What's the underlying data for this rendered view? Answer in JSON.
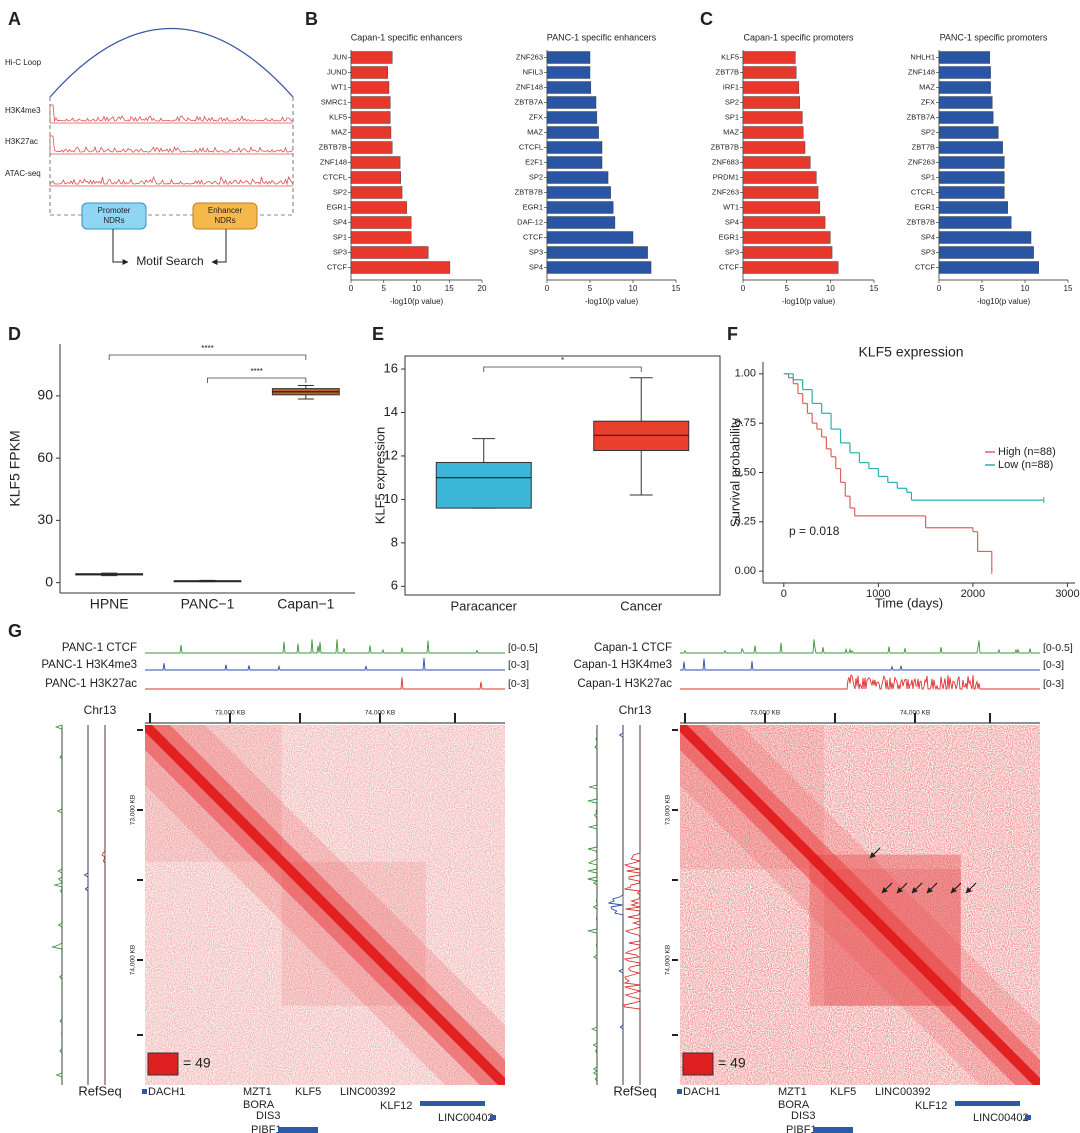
{
  "panel_labels": [
    "A",
    "B",
    "C",
    "D",
    "E",
    "F",
    "G"
  ],
  "panel_a": {
    "tracks": [
      "Hi-C Loop",
      "H3K4me3",
      "H3K27ac",
      "ATAC-seq"
    ],
    "boxes": [
      {
        "line1": "Promoter",
        "line2": "NDRs"
      },
      {
        "line1": "Enhancer",
        "line2": "NDRs"
      }
    ],
    "center": "Motif Search"
  },
  "chart_data": [
    {
      "type": "bar",
      "orientation": "horizontal",
      "title": "Capan-1 specific enhancers",
      "categories": [
        "JUN",
        "JUND",
        "WT1",
        "SMRC1",
        "KLF5",
        "MAZ",
        "ZBTB7B",
        "ZNF148",
        "CTCFL",
        "SP2",
        "EGR1",
        "SP4",
        "SP1",
        "SP3",
        "CTCF"
      ],
      "values": [
        6.3,
        5.6,
        5.8,
        6.0,
        6.0,
        6.1,
        6.3,
        7.5,
        7.6,
        7.8,
        8.5,
        9.2,
        9.2,
        11.8,
        15.1
      ],
      "color": "#e8382b",
      "xlim": [
        0,
        20
      ],
      "xticks": [
        0,
        5,
        10,
        15,
        20
      ],
      "xlabel": "-log10(p value)"
    },
    {
      "type": "bar",
      "orientation": "horizontal",
      "title": "PANC-1 specific enhancers",
      "categories": [
        "ZNF263",
        "NFIL3",
        "ZNF148",
        "ZBTB7A",
        "ZFX",
        "MAZ",
        "CTCFL",
        "E2F1",
        "SP2",
        "ZBTB7B",
        "EGR1",
        "DAF-12",
        "CTCF",
        "SP3",
        "SP4"
      ],
      "values": [
        5.0,
        5.0,
        5.1,
        5.7,
        5.8,
        6.0,
        6.4,
        6.4,
        7.1,
        7.4,
        7.7,
        7.9,
        10.0,
        11.7,
        12.1
      ],
      "color": "#2a55a5",
      "xlim": [
        0,
        15
      ],
      "xticks": [
        0,
        5,
        10,
        15
      ],
      "xlabel": "-log10(p value)"
    },
    {
      "type": "bar",
      "orientation": "horizontal",
      "title": "Capan-1 specific promoters",
      "categories": [
        "KLF5",
        "ZBT7B",
        "IRF1",
        "SP2",
        "SP1",
        "MAZ",
        "ZBTB7B",
        "ZNF683",
        "PRDM1",
        "ZNF263",
        "WT1",
        "SP4",
        "EGR1",
        "SP3",
        "CTCF"
      ],
      "values": [
        6.0,
        6.1,
        6.4,
        6.5,
        6.8,
        6.9,
        7.1,
        7.7,
        8.4,
        8.6,
        8.8,
        9.4,
        10.0,
        10.2,
        10.9
      ],
      "color": "#e8382b",
      "xlim": [
        0,
        15
      ],
      "xticks": [
        0,
        5,
        10,
        15
      ],
      "xlabel": "-log10(p value)"
    },
    {
      "type": "bar",
      "orientation": "horizontal",
      "title": "PANC-1 specific promoters",
      "categories": [
        "NHLH1",
        "ZNF148",
        "MAZ",
        "ZFX",
        "ZBTB7A",
        "SP2",
        "ZBT7B",
        "ZNF263",
        "SP1",
        "CTCFL",
        "EGR1",
        "ZBTB7B",
        "SP4",
        "SP3",
        "CTCF"
      ],
      "values": [
        5.9,
        6.0,
        6.0,
        6.2,
        6.3,
        6.9,
        7.4,
        7.6,
        7.6,
        7.6,
        8.0,
        8.4,
        10.7,
        11.0,
        11.6
      ],
      "color": "#2a55a5",
      "xlim": [
        0,
        15
      ],
      "xticks": [
        0,
        5,
        10,
        15
      ],
      "xlabel": "-log10(p value)"
    },
    {
      "type": "box",
      "ylabel": "KLF5 FPKM",
      "categories": [
        "HPNE",
        "PANC−1",
        "Capan−1"
      ],
      "boxes": [
        {
          "whislo": 3.4,
          "q1": 3.7,
          "median": 4.0,
          "q3": 4.3,
          "whishi": 4.6
        },
        {
          "whislo": 0.5,
          "q1": 0.7,
          "median": 0.8,
          "q3": 0.9,
          "whishi": 1.1
        },
        {
          "whislo": 88.5,
          "q1": 90.5,
          "median": 92.0,
          "q3": 93.5,
          "whishi": 95.0
        }
      ],
      "colors": [
        "#9a9a9a",
        "#444444",
        "#c0602a"
      ],
      "ylim": [
        -5,
        115
      ],
      "yticks": [
        0,
        30,
        60,
        90
      ],
      "comparisons": [
        {
          "pair": [
            0,
            2
          ],
          "label": "****"
        },
        {
          "pair": [
            1,
            2
          ],
          "label": "****"
        }
      ]
    },
    {
      "type": "box",
      "frame": true,
      "ylabel": "KLF5 expression",
      "categories": [
        "Paracancer",
        "Cancer"
      ],
      "boxes": [
        {
          "whislo": 9.6,
          "q1": 9.6,
          "median": 11.0,
          "q3": 11.7,
          "whishi": 12.8
        },
        {
          "whislo": 10.2,
          "q1": 12.25,
          "median": 12.95,
          "q3": 13.6,
          "whishi": 15.6
        }
      ],
      "colors": [
        "#3bb6d6",
        "#e8402c"
      ],
      "ylim": [
        5.6,
        16.6
      ],
      "yticks": [
        6,
        8,
        10,
        12,
        14,
        16
      ],
      "comparisons": [
        {
          "pair": [
            0,
            1
          ],
          "label": "*"
        }
      ]
    },
    {
      "type": "line",
      "step": true,
      "title": "KLF5 expression",
      "xlabel": "Time (days)",
      "ylabel": "Survival probability",
      "series": [
        {
          "name": "High (n=88)",
          "color": "#e06060",
          "x": [
            0,
            50,
            100,
            150,
            200,
            250,
            300,
            350,
            400,
            450,
            500,
            550,
            600,
            650,
            700,
            750,
            1400,
            1500,
            2000,
            2050,
            2200
          ],
          "values": [
            1.0,
            0.98,
            0.95,
            0.9,
            0.85,
            0.8,
            0.75,
            0.72,
            0.68,
            0.62,
            0.58,
            0.52,
            0.45,
            0.38,
            0.32,
            0.28,
            0.28,
            0.22,
            0.2,
            0.1,
            0.0
          ]
        },
        {
          "name": "Low (n=88)",
          "color": "#2ab0b0",
          "x": [
            0,
            100,
            200,
            300,
            400,
            500,
            600,
            700,
            800,
            900,
            1000,
            1100,
            1200,
            1300,
            1350,
            2750
          ],
          "values": [
            1.0,
            0.97,
            0.92,
            0.85,
            0.8,
            0.72,
            0.65,
            0.6,
            0.55,
            0.52,
            0.48,
            0.45,
            0.42,
            0.4,
            0.36,
            0.36
          ]
        }
      ],
      "xlim": [
        -220,
        3080
      ],
      "xticks": [
        0,
        1000,
        2000,
        3000
      ],
      "ylim": [
        -0.06,
        1.06
      ],
      "yticks": [
        {
          "value": 0,
          "label": "0.00"
        },
        {
          "value": 0.25,
          "label": "0.25"
        },
        {
          "value": 0.5,
          "label": "0.50"
        },
        {
          "value": 0.75,
          "label": "0.75"
        },
        {
          "value": 1,
          "label": "1.00"
        }
      ],
      "annotations": [
        "p = 0.018"
      ],
      "legend": "right"
    }
  ],
  "panel_g": {
    "views": [
      {
        "tracks": [
          {
            "name": "PANC-1 CTCF",
            "range": "[0-0.5]",
            "color": "#3a9a3a"
          },
          {
            "name": "PANC-1 H3K4me3",
            "range": "[0-3]",
            "color": "#2a4fa8"
          },
          {
            "name": "PANC-1 H3K27ac",
            "range": "[0-3]",
            "color": "#e03030"
          }
        ],
        "chrom": "Chr13",
        "kb_labels": [
          "73,000 KB",
          "74,000 KB"
        ],
        "refseq": "RefSeq",
        "scale": "= 49",
        "genes": [
          "DACH1",
          "MZT1",
          "BORA",
          "DIS3",
          "PIBF1",
          "KLF5",
          "LINC00392",
          "KLF12",
          "LINC00402"
        ]
      },
      {
        "tracks": [
          {
            "name": "Capan-1 CTCF",
            "range": "[0-0.5]",
            "color": "#3a9a3a"
          },
          {
            "name": "Capan-1 H3K4me3",
            "range": "[0-3]",
            "color": "#2a4fa8"
          },
          {
            "name": "Capan-1 H3K27ac",
            "range": "[0-3]",
            "color": "#e03030"
          }
        ],
        "chrom": "Chr13",
        "kb_labels": [
          "73,000 KB",
          "74,000 KB"
        ],
        "refseq": "RefSeq",
        "scale": "= 49",
        "genes": [
          "DACH1",
          "MZT1",
          "BORA",
          "DIS3",
          "PIBF1",
          "KLF5",
          "LINC00392",
          "KLF12",
          "LINC00402"
        ]
      }
    ]
  }
}
